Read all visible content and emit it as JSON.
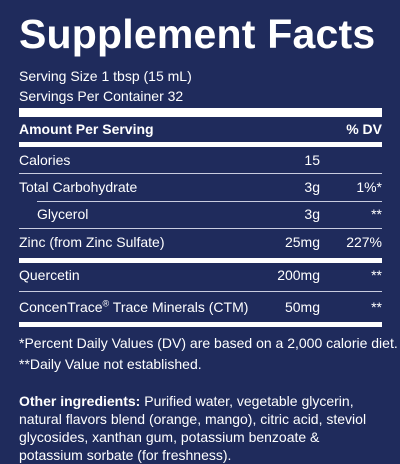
{
  "label": {
    "title": "Supplement Facts",
    "serving_size": "Serving Size 1 tbsp (15 mL)",
    "servings_per_container": "Servings Per Container 32",
    "header_amount": "Amount Per Serving",
    "header_dv": "% DV",
    "rows": [
      {
        "name": "Calories",
        "amount": "15",
        "dv": ""
      },
      {
        "name": "Total Carbohydrate",
        "amount": "3g",
        "dv": "1%*"
      },
      {
        "name": "Glycerol",
        "amount": "3g",
        "dv": "**"
      },
      {
        "name": "Zinc (from Zinc Sulfate)",
        "amount": "25mg",
        "dv": "227%"
      },
      {
        "name": "Quercetin",
        "amount": "200mg",
        "dv": "**"
      },
      {
        "name_main": "ConcenTrace",
        "name_mark": "®",
        "name_rest": " Trace Minerals (CTM)",
        "amount": "50mg",
        "dv": "**"
      }
    ],
    "footnote_1": "*Percent Daily Values (DV) are based on a 2,000 calorie diet.",
    "footnote_2": "**Daily Value not established.",
    "ingredients_label": "Other ingredients:",
    "ingredients_text": " Purified water, vegetable glycerin, natural flavors blend (orange, mango), citric acid, steviol glycosides, xanthan gum, potassium benzoate & potassium sorbate (for freshness)."
  }
}
